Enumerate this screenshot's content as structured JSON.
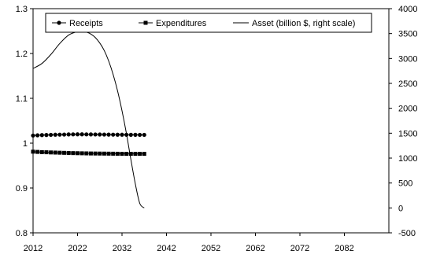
{
  "chart_data": {
    "type": "line",
    "x_ticks": [
      2012,
      2022,
      2032,
      2042,
      2052,
      2062,
      2072,
      2082
    ],
    "xlim": [
      2012,
      2092
    ],
    "ylim": [
      0.8,
      1.3
    ],
    "y_ticks": [
      "0.8",
      "0.9",
      "1",
      "1.1",
      "1.2",
      "1.3"
    ],
    "y2lim": [
      -500,
      4000
    ],
    "y2_ticks": [
      "-500",
      "0",
      "500",
      "1000",
      "1500",
      "2000",
      "2500",
      "3000",
      "3500",
      "4000"
    ],
    "legend_position": "top",
    "grid": false,
    "series": [
      {
        "name": "Receipts",
        "axis": "left",
        "marker": "circle",
        "x": [
          2012,
          2013,
          2014,
          2015,
          2016,
          2017,
          2018,
          2019,
          2020,
          2021,
          2022,
          2023,
          2024,
          2025,
          2026,
          2027,
          2028,
          2029,
          2030,
          2031,
          2032,
          2033,
          2034,
          2035,
          2036,
          2037
        ],
        "values": [
          1.017,
          1.0175,
          1.018,
          1.0182,
          1.0185,
          1.0188,
          1.019,
          1.0192,
          1.0195,
          1.0196,
          1.0197,
          1.0197,
          1.0196,
          1.0195,
          1.0194,
          1.0193,
          1.0192,
          1.0191,
          1.019,
          1.0189,
          1.0188,
          1.0187,
          1.0186,
          1.0186,
          1.0185,
          1.0185
        ]
      },
      {
        "name": "Expenditures",
        "axis": "left",
        "marker": "square",
        "x": [
          2012,
          2013,
          2014,
          2015,
          2016,
          2017,
          2018,
          2019,
          2020,
          2021,
          2022,
          2023,
          2024,
          2025,
          2026,
          2027,
          2028,
          2029,
          2030,
          2031,
          2032,
          2033,
          2034,
          2035,
          2036,
          2037
        ],
        "values": [
          0.981,
          0.9805,
          0.98,
          0.9797,
          0.9793,
          0.979,
          0.9787,
          0.9784,
          0.9781,
          0.9778,
          0.9776,
          0.9774,
          0.9772,
          0.977,
          0.9769,
          0.9768,
          0.9767,
          0.9766,
          0.9765,
          0.9764,
          0.9763,
          0.9762,
          0.9762,
          0.9762,
          0.9762,
          0.9762
        ]
      },
      {
        "name": "Asset (billion $, right scale)",
        "axis": "right",
        "marker": "none",
        "x": [
          2012,
          2014,
          2016,
          2018,
          2020,
          2022,
          2023,
          2024,
          2025,
          2026,
          2027,
          2028,
          2029,
          2030,
          2031,
          2032,
          2033,
          2034,
          2035,
          2036,
          2037
        ],
        "values": [
          2800,
          2900,
          3080,
          3300,
          3470,
          3540,
          3545,
          3530,
          3490,
          3420,
          3310,
          3160,
          2950,
          2680,
          2350,
          1950,
          1490,
          970,
          480,
          90,
          0
        ]
      }
    ]
  }
}
